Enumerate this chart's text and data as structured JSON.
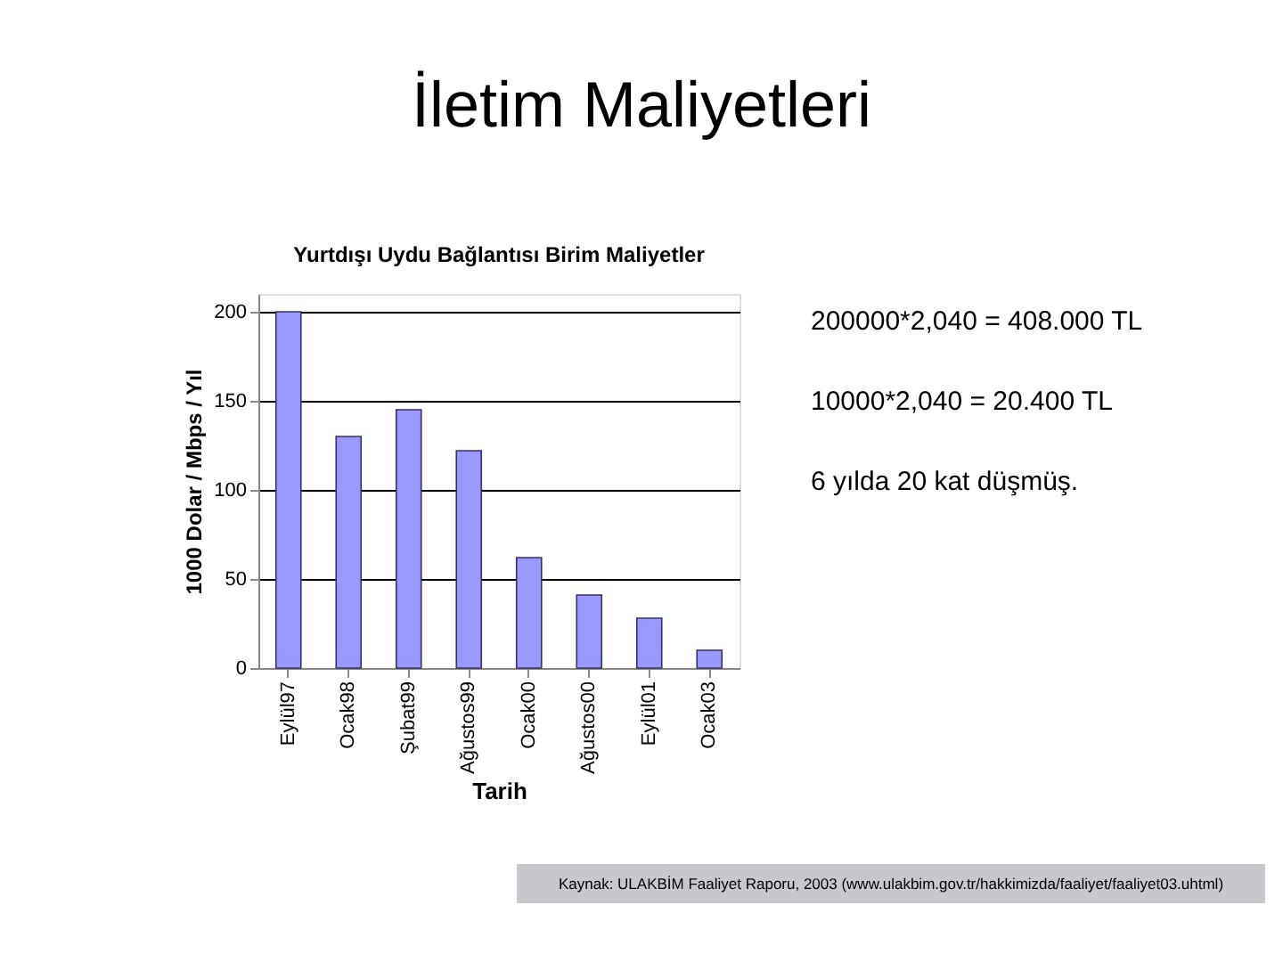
{
  "chart_data": {
    "type": "bar",
    "title": "İletim Maliyetleri",
    "subtitle": "Yurtdışı Uydu Bağlantısı Birim Maliyetler",
    "xlabel": "Tarih",
    "ylabel": "1000 Dolar / Mbps / Yıl",
    "categories": [
      "Eylül97",
      "Ocak98",
      "Şubat99",
      "Ağustos99",
      "Ocak00",
      "Ağustos00",
      "Eylül01",
      "Ocak03"
    ],
    "values": [
      200,
      130,
      145,
      122,
      62,
      41,
      28,
      10
    ],
    "color": "#9999ff",
    "ylim": [
      0,
      210
    ],
    "yticks": [
      0,
      50,
      100,
      150,
      200
    ],
    "grid": "y",
    "annotations": [
      "200000*2,040 = 408.000 TL",
      "10000*2,040 = 20.400 TL",
      "6 yılda 20 kat düşmüş.",
      "Kaynak: ULAKBİM Faaliyet Raporu, 2003 (www.ulakbim.gov.tr/hakkimizda/faaliyet/faaliyet03.uhtml)"
    ]
  }
}
